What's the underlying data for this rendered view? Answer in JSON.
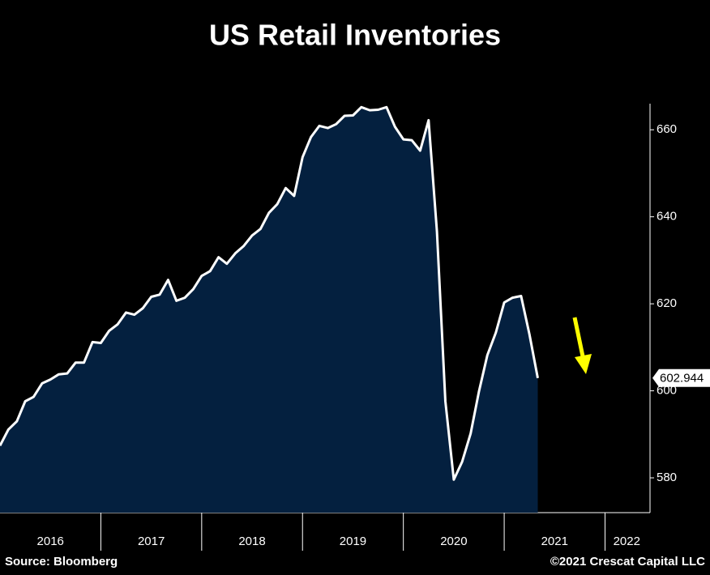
{
  "chart_data": {
    "type": "area",
    "title": "US Retail Inventories",
    "source": "Source: Bloomberg",
    "copyright": "©2021 Crescat Capital LLC",
    "x": [
      2016,
      2016.083,
      2016.167,
      2016.25,
      2016.333,
      2016.417,
      2016.5,
      2016.583,
      2016.667,
      2016.75,
      2016.833,
      2016.917,
      2017,
      2017.083,
      2017.167,
      2017.25,
      2017.333,
      2017.417,
      2017.5,
      2017.583,
      2017.667,
      2017.75,
      2017.833,
      2017.917,
      2018,
      2018.083,
      2018.167,
      2018.25,
      2018.333,
      2018.417,
      2018.5,
      2018.583,
      2018.667,
      2018.75,
      2018.833,
      2018.917,
      2019,
      2019.083,
      2019.167,
      2019.25,
      2019.333,
      2019.417,
      2019.5,
      2019.583,
      2019.667,
      2019.75,
      2019.833,
      2019.917,
      2020,
      2020.083,
      2020.167,
      2020.25,
      2020.333,
      2020.417,
      2020.5,
      2020.583,
      2020.667,
      2020.75,
      2020.833,
      2020.917,
      2021,
      2021.083,
      2021.167,
      2021.25,
      2021.333
    ],
    "series": [
      {
        "name": "US Retail Inventories",
        "color": "#ffffff",
        "fill": "#04203f",
        "values": [
          587.4,
          591.1,
          593,
          597.6,
          598.6,
          601.7,
          602.6,
          603.8,
          604,
          606.5,
          606.5,
          611.2,
          611,
          613.8,
          615.3,
          618,
          617.5,
          619,
          621.6,
          622.1,
          625.5,
          620.7,
          621.4,
          623.4,
          626.4,
          627.5,
          630.7,
          629.2,
          631.6,
          633.3,
          635.7,
          637.2,
          640.9,
          642.9,
          646.6,
          644.8,
          653.7,
          658.3,
          660.9,
          660.4,
          661.3,
          663.2,
          663.3,
          665.2,
          664.5,
          664.6,
          665.2,
          660.7,
          657.8,
          657.6,
          655.2,
          662.2,
          636.6,
          597.6,
          579.6,
          583.7,
          590.2,
          599.9,
          608.2,
          613.4,
          620.3,
          621.4,
          621.8,
          613,
          602.944
        ]
      }
    ],
    "last_value_label": "602.944",
    "xlim": [
      2016,
      2022.43
    ],
    "xticks": [
      {
        "value": 2016.5,
        "label": "2016"
      },
      {
        "value": 2017.5,
        "label": "2017"
      },
      {
        "value": 2018.5,
        "label": "2018"
      },
      {
        "value": 2019.5,
        "label": "2019"
      },
      {
        "value": 2020.5,
        "label": "2020"
      },
      {
        "value": 2021.5,
        "label": "2021"
      },
      {
        "value": 2022.5,
        "label": "2022"
      }
    ],
    "ylim": [
      572,
      666
    ],
    "yticks": [
      580,
      600,
      620,
      640,
      660
    ]
  }
}
